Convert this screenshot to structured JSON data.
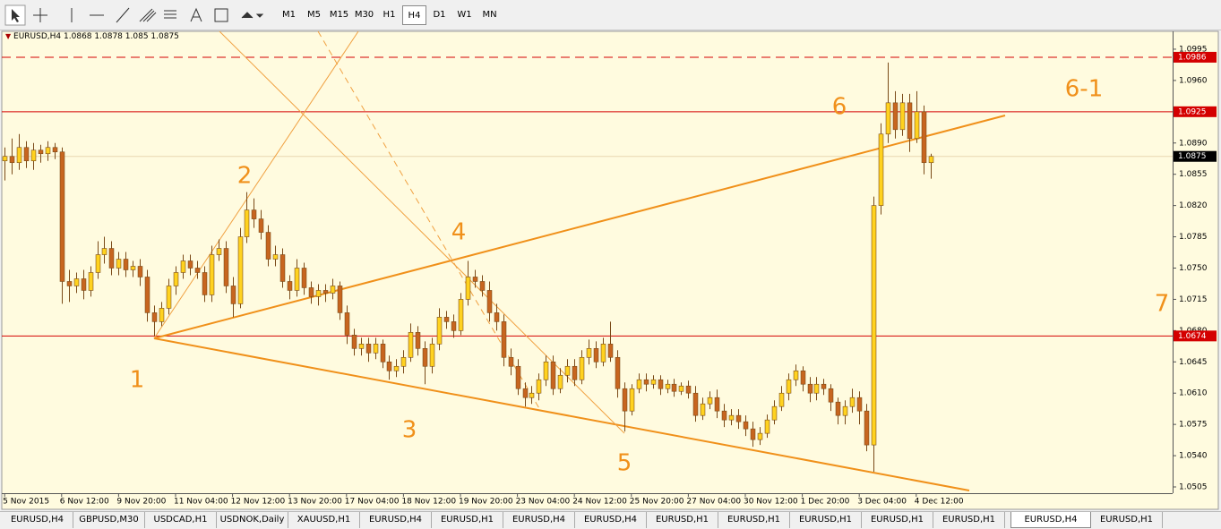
{
  "toolbar": {
    "timeframes": [
      "M1",
      "M5",
      "M15",
      "M30",
      "H1",
      "H4",
      "D1",
      "W1",
      "MN"
    ],
    "active": 5
  },
  "tabs": {
    "items": [
      "EURUSD,H4",
      "GBPUSD,M30",
      "USDCAD,H1",
      "USDNOK,Daily",
      "XAUUSD,H1",
      "EURUSD,H4",
      "EURUSD,H1",
      "EURUSD,H4",
      "EURUSD,H4",
      "EURUSD,H1",
      "EURUSD,H1",
      "EURUSD,H1",
      "EURUSD,H1",
      "EURUSD,H1",
      "EURUSD,H4",
      "EURUSD,H1"
    ],
    "active": 14
  },
  "chart_data": {
    "type": "candlestick",
    "symbol": "EURUSD,H4",
    "up_color": "#ffd21f",
    "down_color": "#c7651f",
    "wick_color": "#7a4a18",
    "open": [
      1.087,
      1.0875,
      1.0868,
      1.0885,
      1.087,
      1.0882,
      1.0878,
      1.0885,
      1.088,
      1.0735,
      1.073,
      1.0738,
      1.0725,
      1.0745,
      1.0765,
      1.0772,
      1.075,
      1.076,
      1.0748,
      1.0752,
      1.074,
      1.07,
      1.069,
      1.0705,
      1.073,
      1.0745,
      1.0758,
      1.075,
      1.0745,
      1.072,
      1.0765,
      1.0772,
      1.073,
      1.071,
      1.0785,
      1.0815,
      1.0805,
      1.079,
      1.076,
      1.0765,
      1.0735,
      1.0725,
      1.075,
      1.0728,
      1.0718,
      1.0725,
      1.0722,
      1.073,
      1.07,
      1.0675,
      1.066,
      1.0665,
      1.0655,
      1.0665,
      1.0645,
      1.0635,
      1.064,
      1.065,
      1.0678,
      1.066,
      1.064,
      1.0665,
      1.0695,
      1.069,
      1.068,
      1.0715,
      1.074,
      1.0735,
      1.0725,
      1.07,
      1.069,
      1.065,
      1.064,
      1.0615,
      1.0605,
      1.061,
      1.0625,
      1.0645,
      1.0615,
      1.063,
      1.064,
      1.0625,
      1.065,
      1.066,
      1.0645,
      1.0665,
      1.065,
      1.0615,
      1.059,
      1.0615,
      1.0625,
      1.062,
      1.0625,
      1.0615,
      1.062,
      1.0612,
      1.0618,
      1.061,
      1.0585,
      1.0598,
      1.0605,
      1.059,
      1.058,
      1.0585,
      1.0578,
      1.057,
      1.0558,
      1.0565,
      1.058,
      1.0595,
      1.061,
      1.0625,
      1.0635,
      1.062,
      1.061,
      1.062,
      1.0615,
      1.06,
      1.0585,
      1.0595,
      1.0605,
      1.059,
      1.0552,
      1.082,
      1.09,
      1.0935,
      1.0905,
      1.0935,
      1.0895,
      1.0925,
      1.0868
    ],
    "high": [
      1.0885,
      1.0895,
      1.09,
      1.0892,
      1.089,
      1.0888,
      1.0892,
      1.089,
      1.0885,
      1.0748,
      1.0745,
      1.0748,
      1.0752,
      1.078,
      1.0785,
      1.078,
      1.0768,
      1.0768,
      1.0758,
      1.076,
      1.0748,
      1.0708,
      1.0712,
      1.0738,
      1.0752,
      1.0765,
      1.0765,
      1.0758,
      1.0752,
      1.0775,
      1.0782,
      1.078,
      1.074,
      1.0795,
      1.0835,
      1.0828,
      1.0815,
      1.0798,
      1.0775,
      1.0772,
      1.0742,
      1.076,
      1.0756,
      1.0735,
      1.0732,
      1.0732,
      1.0738,
      1.0735,
      1.0708,
      1.0682,
      1.0672,
      1.0672,
      1.0672,
      1.067,
      1.0652,
      1.0648,
      1.0658,
      1.0688,
      1.0685,
      1.0668,
      1.0672,
      1.0705,
      1.0702,
      1.0698,
      1.0722,
      1.0758,
      1.0748,
      1.0742,
      1.0735,
      1.071,
      1.0698,
      1.066,
      1.0648,
      1.0622,
      1.0618,
      1.0632,
      1.0652,
      1.0652,
      1.0638,
      1.0648,
      1.0648,
      1.0658,
      1.067,
      1.0668,
      1.0672,
      1.069,
      1.0658,
      1.0622,
      1.062,
      1.0632,
      1.0632,
      1.063,
      1.063,
      1.0625,
      1.0626,
      1.0622,
      1.0624,
      1.0618,
      1.0605,
      1.0612,
      1.0614,
      1.0598,
      1.0592,
      1.0592,
      1.0585,
      1.0578,
      1.0572,
      1.0586,
      1.0602,
      1.0618,
      1.0632,
      1.0642,
      1.064,
      1.0628,
      1.0628,
      1.0626,
      1.062,
      1.0605,
      1.0602,
      1.0615,
      1.0612,
      1.0598,
      1.083,
      1.0912,
      1.098,
      1.0948,
      1.0945,
      1.0945,
      1.0948,
      1.0932,
      1.0878
    ],
    "low": [
      1.0848,
      1.0855,
      1.086,
      1.0862,
      1.086,
      1.0868,
      1.087,
      1.0872,
      1.071,
      1.0712,
      1.0722,
      1.0715,
      1.0718,
      1.0738,
      1.0755,
      1.0742,
      1.0742,
      1.074,
      1.074,
      1.073,
      1.069,
      1.0674,
      1.0685,
      1.0698,
      1.072,
      1.0738,
      1.0742,
      1.0738,
      1.0712,
      1.0712,
      1.0758,
      1.0722,
      1.0695,
      1.0705,
      1.0778,
      1.0795,
      1.0782,
      1.0752,
      1.0752,
      1.0728,
      1.0715,
      1.0718,
      1.072,
      1.071,
      1.0708,
      1.0712,
      1.0715,
      1.0692,
      1.0665,
      1.0652,
      1.0652,
      1.0645,
      1.0648,
      1.0638,
      1.0625,
      1.0628,
      1.0632,
      1.0645,
      1.0652,
      1.062,
      1.0632,
      1.0658,
      1.0682,
      1.0672,
      1.0675,
      1.0708,
      1.0728,
      1.0718,
      1.069,
      1.068,
      1.064,
      1.063,
      1.0608,
      1.0595,
      1.0598,
      1.0602,
      1.0618,
      1.0608,
      1.061,
      1.0622,
      1.0618,
      1.062,
      1.0642,
      1.0638,
      1.064,
      1.0645,
      1.0605,
      1.0567,
      1.0585,
      1.061,
      1.0612,
      1.0615,
      1.0608,
      1.061,
      1.0606,
      1.0608,
      1.0604,
      1.0578,
      1.058,
      1.0592,
      1.0582,
      1.0572,
      1.0574,
      1.057,
      1.0562,
      1.055,
      1.0552,
      1.056,
      1.0575,
      1.059,
      1.0602,
      1.0618,
      1.0612,
      1.06,
      1.0602,
      1.0608,
      1.059,
      1.0575,
      1.0575,
      1.0588,
      1.0575,
      1.0545,
      1.0522,
      1.081,
      1.089,
      1.0895,
      1.0898,
      1.088,
      1.089,
      1.0855,
      1.085
    ],
    "close": [
      1.0875,
      1.0868,
      1.0885,
      1.087,
      1.0882,
      1.0878,
      1.0885,
      1.088,
      1.0735,
      1.073,
      1.0738,
      1.0725,
      1.0745,
      1.0765,
      1.0772,
      1.075,
      1.076,
      1.0748,
      1.0752,
      1.074,
      1.07,
      1.069,
      1.0705,
      1.073,
      1.0745,
      1.0758,
      1.075,
      1.0745,
      1.072,
      1.0765,
      1.0772,
      1.073,
      1.071,
      1.0785,
      1.0815,
      1.0805,
      1.079,
      1.076,
      1.0765,
      1.0735,
      1.0725,
      1.075,
      1.0728,
      1.0718,
      1.0725,
      1.0722,
      1.073,
      1.07,
      1.0675,
      1.066,
      1.0665,
      1.0655,
      1.0665,
      1.0645,
      1.0635,
      1.064,
      1.065,
      1.0678,
      1.066,
      1.064,
      1.0665,
      1.0695,
      1.069,
      1.068,
      1.0715,
      1.074,
      1.0735,
      1.0725,
      1.07,
      1.069,
      1.065,
      1.064,
      1.0615,
      1.0605,
      1.061,
      1.0625,
      1.0645,
      1.0615,
      1.063,
      1.064,
      1.0625,
      1.065,
      1.066,
      1.0645,
      1.0665,
      1.065,
      1.0615,
      1.059,
      1.0615,
      1.0625,
      1.062,
      1.0625,
      1.0615,
      1.062,
      1.0612,
      1.0618,
      1.061,
      1.0585,
      1.0598,
      1.0605,
      1.059,
      1.058,
      1.0585,
      1.0578,
      1.057,
      1.0558,
      1.0565,
      1.058,
      1.0595,
      1.061,
      1.0625,
      1.0635,
      1.062,
      1.061,
      1.062,
      1.0615,
      1.06,
      1.0585,
      1.0595,
      1.0605,
      1.059,
      1.0552,
      1.082,
      1.09,
      1.0935,
      1.0905,
      1.0935,
      1.0895,
      1.0925,
      1.0868,
      1.0875
    ],
    "xlim": [
      -0.4,
      164
    ],
    "xticks": [
      {
        "value": 0,
        "label": "5 Nov 2015"
      },
      {
        "value": 8,
        "label": "6 Nov 12:00"
      },
      {
        "value": 16,
        "label": "9 Nov 20:00"
      },
      {
        "value": 24,
        "label": "11 Nov 04:00"
      },
      {
        "value": 32,
        "label": "12 Nov 12:00"
      },
      {
        "value": 40,
        "label": "13 Nov 20:00"
      },
      {
        "value": 48,
        "label": "17 Nov 04:00"
      },
      {
        "value": 56,
        "label": "18 Nov 12:00"
      },
      {
        "value": 64,
        "label": "19 Nov 20:00"
      },
      {
        "value": 72,
        "label": "23 Nov 04:00"
      },
      {
        "value": 80,
        "label": "24 Nov 12:00"
      },
      {
        "value": 88,
        "label": "25 Nov 20:00"
      },
      {
        "value": 96,
        "label": "27 Nov 04:00"
      },
      {
        "value": 104,
        "label": "30 Nov 12:00"
      },
      {
        "value": 112,
        "label": "1 Dec 20:00"
      },
      {
        "value": 120,
        "label": "3 Dec 04:00"
      },
      {
        "value": 128,
        "label": "4 Dec 12:00"
      }
    ],
    "ylim": [
      1.0498,
      1.1015
    ],
    "yticks": [
      {
        "value": 1.0995,
        "label": "1.0995"
      },
      {
        "value": 1.096,
        "label": "1.0960"
      },
      {
        "value": 1.0925,
        "label": "1.0925"
      },
      {
        "value": 1.089,
        "label": "1.0890"
      },
      {
        "value": 1.0855,
        "label": "1.0855"
      },
      {
        "value": 1.082,
        "label": "1.0820"
      },
      {
        "value": 1.0785,
        "label": "1.0785"
      },
      {
        "value": 1.075,
        "label": "1.0750"
      },
      {
        "value": 1.0715,
        "label": "1.0715"
      },
      {
        "value": 1.068,
        "label": "1.0680"
      },
      {
        "value": 1.0645,
        "label": "1.0645"
      },
      {
        "value": 1.061,
        "label": "1.0610"
      },
      {
        "value": 1.0575,
        "label": "1.0575"
      },
      {
        "value": 1.054,
        "label": "1.0540"
      },
      {
        "value": 1.0505,
        "label": "1.0505"
      }
    ],
    "hline_color": "#d40000",
    "hlines": [
      {
        "value": 1.0986,
        "style": "dashed"
      },
      {
        "value": 1.0925,
        "style": "solid"
      },
      {
        "value": 1.0674,
        "style": "solid"
      }
    ],
    "annotations": [
      "1",
      "2",
      "3",
      "4",
      "5",
      "6",
      "6-1",
      "7"
    ]
  }
}
